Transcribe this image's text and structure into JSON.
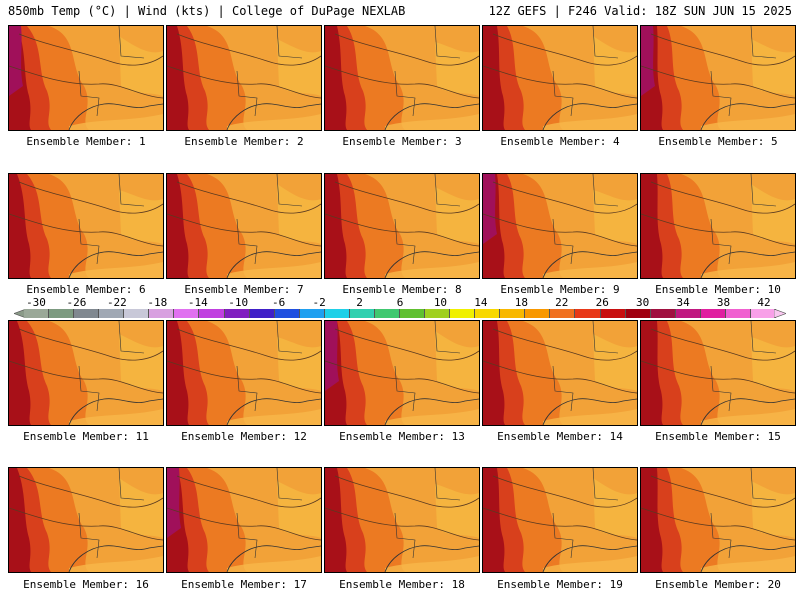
{
  "header": {
    "left": "850mb Temp (°C) | Wind (kts) | College of DuPage NEXLAB",
    "right": "12Z GEFS | F246 Valid: 18Z SUN JUN 15 2025"
  },
  "colorbar": {
    "labels": [
      "-30",
      "-26",
      "-22",
      "-18",
      "-14",
      "-10",
      "-6",
      "-2",
      "2",
      "6",
      "10",
      "14",
      "18",
      "22",
      "26",
      "30",
      "34",
      "38",
      "42"
    ],
    "colors": [
      "#9aa898",
      "#7c9a80",
      "#808890",
      "#a0a8b4",
      "#c8c8d8",
      "#d8a0e0",
      "#e070f0",
      "#c040e0",
      "#8020c0",
      "#4020c8",
      "#2050e0",
      "#20a0f0",
      "#20d0e8",
      "#30d0b0",
      "#40c870",
      "#60c030",
      "#a0d020",
      "#f0f000",
      "#f8d800",
      "#f8b800",
      "#f89800",
      "#f07020",
      "#e83818",
      "#c81010",
      "#a00010",
      "#a01040",
      "#c01880",
      "#e020a0",
      "#f060d0",
      "#f8a0e8"
    ]
  },
  "members": [
    {
      "label": "Ensemble Member: 1"
    },
    {
      "label": "Ensemble Member: 2"
    },
    {
      "label": "Ensemble Member: 3"
    },
    {
      "label": "Ensemble Member: 4"
    },
    {
      "label": "Ensemble Member: 5"
    },
    {
      "label": "Ensemble Member: 6"
    },
    {
      "label": "Ensemble Member: 7"
    },
    {
      "label": "Ensemble Member: 8"
    },
    {
      "label": "Ensemble Member: 9"
    },
    {
      "label": "Ensemble Member: 10"
    },
    {
      "label": "Ensemble Member: 11"
    },
    {
      "label": "Ensemble Member: 12"
    },
    {
      "label": "Ensemble Member: 13"
    },
    {
      "label": "Ensemble Member: 14"
    },
    {
      "label": "Ensemble Member: 15"
    },
    {
      "label": "Ensemble Member: 16"
    },
    {
      "label": "Ensemble Member: 17"
    },
    {
      "label": "Ensemble Member: 18"
    },
    {
      "label": "Ensemble Member: 19"
    },
    {
      "label": "Ensemble Member: 20"
    }
  ]
}
